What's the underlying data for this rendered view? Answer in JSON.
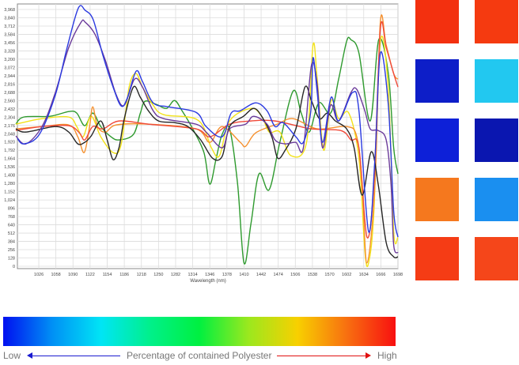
{
  "chart_data": {
    "type": "line",
    "title": "",
    "xlabel": "Wavelength (nm)",
    "ylabel": "",
    "xlim": [
      986,
      1698
    ],
    "ylim": [
      0,
      4000
    ],
    "grid": true,
    "x_ticks": [
      "1026",
      "1058",
      "1090",
      "1122",
      "1154",
      "1186",
      "1218",
      "1250",
      "1282",
      "1314",
      "1346",
      "1378",
      "1410",
      "1442",
      "1474",
      "1506",
      "1538",
      "1570",
      "1602",
      "1634",
      "1666",
      "1698"
    ],
    "x_tick_values": [
      1026,
      1058,
      1090,
      1122,
      1154,
      1186,
      1218,
      1250,
      1282,
      1314,
      1346,
      1378,
      1410,
      1442,
      1474,
      1506,
      1538,
      1570,
      1602,
      1634,
      1666,
      1698
    ],
    "y_ticks": [
      "0",
      "128",
      "256",
      "384",
      "512",
      "640",
      "768",
      "896",
      "1,024",
      "1,152",
      "1,280",
      "1,408",
      "1,536",
      "1,664",
      "1,792",
      "1,920",
      "2,048",
      "2,176",
      "2,304",
      "2,432",
      "2,560",
      "2,688",
      "2,816",
      "2,944",
      "3,072",
      "3,200",
      "3,328",
      "3,456",
      "3,584",
      "3,712",
      "3,840",
      "3,968"
    ],
    "y_tick_values": [
      0,
      128,
      256,
      384,
      512,
      640,
      768,
      896,
      1024,
      1152,
      1280,
      1408,
      1536,
      1664,
      1792,
      1920,
      2048,
      2176,
      2304,
      2432,
      2560,
      2688,
      2816,
      2944,
      3072,
      3200,
      3328,
      3456,
      3584,
      3712,
      3840,
      3968
    ],
    "series": [
      {
        "name": "green",
        "color": "#2e9a2e",
        "points": [
          [
            983,
            2196
          ],
          [
            998,
            2306
          ],
          [
            1047,
            2318
          ],
          [
            1082,
            2391
          ],
          [
            1097,
            2367
          ],
          [
            1112,
            2172
          ],
          [
            1127,
            2367
          ],
          [
            1142,
            2159
          ],
          [
            1161,
            2001
          ],
          [
            1176,
            1952
          ],
          [
            1203,
            2037
          ],
          [
            1216,
            2367
          ],
          [
            1225,
            2550
          ],
          [
            1246,
            2501
          ],
          [
            1265,
            2440
          ],
          [
            1280,
            2562
          ],
          [
            1294,
            2403
          ],
          [
            1314,
            2123
          ],
          [
            1335,
            1757
          ],
          [
            1346,
            1269
          ],
          [
            1358,
            1671
          ],
          [
            1369,
            2037
          ],
          [
            1383,
            2123
          ],
          [
            1398,
            1269
          ],
          [
            1410,
            49
          ],
          [
            1423,
            659
          ],
          [
            1438,
            1427
          ],
          [
            1457,
            1183
          ],
          [
            1477,
            1915
          ],
          [
            1502,
            2708
          ],
          [
            1517,
            2367
          ],
          [
            1532,
            2074
          ],
          [
            1550,
            2525
          ],
          [
            1572,
            2367
          ],
          [
            1587,
            2891
          ],
          [
            1602,
            3477
          ],
          [
            1610,
            3501
          ],
          [
            1625,
            3294
          ],
          [
            1646,
            2245
          ],
          [
            1662,
            3501
          ],
          [
            1680,
            2977
          ],
          [
            1690,
            1830
          ],
          [
            1698,
            1427
          ]
        ]
      },
      {
        "name": "yellow",
        "color": "#f2e21a",
        "points": [
          [
            983,
            2196
          ],
          [
            1032,
            2281
          ],
          [
            1082,
            2306
          ],
          [
            1097,
            2159
          ],
          [
            1109,
            2001
          ],
          [
            1124,
            2318
          ],
          [
            1142,
            2001
          ],
          [
            1165,
            1757
          ],
          [
            1180,
            1879
          ],
          [
            1195,
            2769
          ],
          [
            1208,
            2977
          ],
          [
            1220,
            2769
          ],
          [
            1240,
            2489
          ],
          [
            1260,
            2342
          ],
          [
            1324,
            2257
          ],
          [
            1349,
            1830
          ],
          [
            1364,
            1708
          ],
          [
            1383,
            2245
          ],
          [
            1423,
            2440
          ],
          [
            1443,
            2318
          ],
          [
            1457,
            2074
          ],
          [
            1477,
            2074
          ],
          [
            1498,
            1708
          ],
          [
            1527,
            1915
          ],
          [
            1539,
            3416
          ],
          [
            1547,
            2891
          ],
          [
            1559,
            1793
          ],
          [
            1573,
            2562
          ],
          [
            1587,
            2281
          ],
          [
            1606,
            2367
          ],
          [
            1625,
            1671
          ],
          [
            1636,
            244
          ],
          [
            1643,
            49
          ],
          [
            1653,
            854
          ],
          [
            1665,
            3465
          ],
          [
            1680,
            2733
          ],
          [
            1690,
            537
          ],
          [
            1698,
            451
          ]
        ]
      },
      {
        "name": "orange",
        "color": "#f5902e",
        "points": [
          [
            983,
            2123
          ],
          [
            1032,
            2159
          ],
          [
            1082,
            2184
          ],
          [
            1099,
            2001
          ],
          [
            1111,
            1757
          ],
          [
            1121,
            2159
          ],
          [
            1127,
            2464
          ],
          [
            1136,
            2159
          ],
          [
            1151,
            2074
          ],
          [
            1171,
            2184
          ],
          [
            1231,
            2196
          ],
          [
            1320,
            2123
          ],
          [
            1346,
            1915
          ],
          [
            1369,
            2159
          ],
          [
            1403,
            1915
          ],
          [
            1413,
            1854
          ],
          [
            1432,
            2062
          ],
          [
            1472,
            2196
          ],
          [
            1502,
            2281
          ],
          [
            1547,
            2123
          ],
          [
            1602,
            2159
          ],
          [
            1621,
            2001
          ],
          [
            1631,
            1269
          ],
          [
            1640,
            49
          ],
          [
            1655,
            1269
          ],
          [
            1665,
            3770
          ],
          [
            1676,
            3416
          ],
          [
            1690,
            2977
          ],
          [
            1698,
            2891
          ]
        ]
      },
      {
        "name": "red",
        "color": "#f04a3a",
        "points": [
          [
            983,
            2098
          ],
          [
            1032,
            2159
          ],
          [
            1082,
            2172
          ],
          [
            1102,
            2062
          ],
          [
            1112,
            1952
          ],
          [
            1127,
            2159
          ],
          [
            1146,
            2123
          ],
          [
            1176,
            2245
          ],
          [
            1231,
            2196
          ],
          [
            1320,
            2123
          ],
          [
            1346,
            2001
          ],
          [
            1383,
            2196
          ],
          [
            1423,
            2245
          ],
          [
            1468,
            2245
          ],
          [
            1536,
            2123
          ],
          [
            1591,
            2098
          ],
          [
            1610,
            1952
          ],
          [
            1625,
            1830
          ],
          [
            1640,
            451
          ],
          [
            1653,
            1269
          ],
          [
            1665,
            3660
          ],
          [
            1676,
            3379
          ],
          [
            1690,
            2977
          ],
          [
            1698,
            2769
          ]
        ]
      },
      {
        "name": "black",
        "color": "#262626",
        "points": [
          [
            983,
            2123
          ],
          [
            1002,
            2074
          ],
          [
            1057,
            2159
          ],
          [
            1082,
            2074
          ],
          [
            1099,
            1891
          ],
          [
            1112,
            1915
          ],
          [
            1124,
            2013
          ],
          [
            1142,
            2245
          ],
          [
            1154,
            1952
          ],
          [
            1165,
            1647
          ],
          [
            1176,
            1830
          ],
          [
            1186,
            2281
          ],
          [
            1203,
            2769
          ],
          [
            1216,
            2611
          ],
          [
            1231,
            2403
          ],
          [
            1250,
            2245
          ],
          [
            1280,
            2220
          ],
          [
            1305,
            2159
          ],
          [
            1329,
            1952
          ],
          [
            1351,
            1671
          ],
          [
            1369,
            1696
          ],
          [
            1383,
            2159
          ],
          [
            1409,
            2318
          ],
          [
            1428,
            2440
          ],
          [
            1443,
            2318
          ],
          [
            1462,
            2001
          ],
          [
            1473,
            1671
          ],
          [
            1487,
            1793
          ],
          [
            1507,
            2123
          ],
          [
            1524,
            2769
          ],
          [
            1536,
            2562
          ],
          [
            1551,
            2281
          ],
          [
            1566,
            2367
          ],
          [
            1581,
            2245
          ],
          [
            1602,
            2123
          ],
          [
            1616,
            1830
          ],
          [
            1631,
            1098
          ],
          [
            1648,
            1769
          ],
          [
            1661,
            1269
          ],
          [
            1676,
            366
          ],
          [
            1690,
            146
          ],
          [
            1698,
            146
          ]
        ]
      },
      {
        "name": "purple",
        "color": "#6a3a9a",
        "points": [
          [
            983,
            2013
          ],
          [
            1002,
            1891
          ],
          [
            1032,
            2159
          ],
          [
            1057,
            2684
          ],
          [
            1082,
            3379
          ],
          [
            1105,
            3770
          ],
          [
            1113,
            3770
          ],
          [
            1131,
            3587
          ],
          [
            1151,
            3172
          ],
          [
            1171,
            2647
          ],
          [
            1186,
            2489
          ],
          [
            1205,
            2891
          ],
          [
            1220,
            2769
          ],
          [
            1240,
            2403
          ],
          [
            1260,
            2281
          ],
          [
            1320,
            2196
          ],
          [
            1339,
            2074
          ],
          [
            1369,
            1830
          ],
          [
            1383,
            2123
          ],
          [
            1413,
            2196
          ],
          [
            1428,
            2318
          ],
          [
            1453,
            2196
          ],
          [
            1468,
            1952
          ],
          [
            1487,
            1891
          ],
          [
            1507,
            1915
          ],
          [
            1521,
            1830
          ],
          [
            1536,
            3099
          ],
          [
            1547,
            2806
          ],
          [
            1557,
            1830
          ],
          [
            1572,
            2489
          ],
          [
            1587,
            2245
          ],
          [
            1610,
            2684
          ],
          [
            1621,
            2733
          ],
          [
            1636,
            2403
          ],
          [
            1646,
            2123
          ],
          [
            1661,
            2098
          ],
          [
            1676,
            1952
          ],
          [
            1685,
            1269
          ],
          [
            1690,
            329
          ],
          [
            1698,
            207
          ]
        ]
      },
      {
        "name": "blue",
        "color": "#2b3ae0",
        "points": [
          [
            986,
            1976
          ],
          [
            998,
            1891
          ],
          [
            1027,
            2037
          ],
          [
            1057,
            2647
          ],
          [
            1079,
            3379
          ],
          [
            1100,
            3990
          ],
          [
            1113,
            3953
          ],
          [
            1128,
            3806
          ],
          [
            1146,
            3257
          ],
          [
            1165,
            2769
          ],
          [
            1180,
            2477
          ],
          [
            1191,
            2586
          ],
          [
            1208,
            3013
          ],
          [
            1220,
            2855
          ],
          [
            1240,
            2525
          ],
          [
            1268,
            2464
          ],
          [
            1320,
            2379
          ],
          [
            1339,
            2159
          ],
          [
            1369,
            2001
          ],
          [
            1386,
            2367
          ],
          [
            1403,
            2403
          ],
          [
            1432,
            2525
          ],
          [
            1453,
            2403
          ],
          [
            1468,
            2159
          ],
          [
            1483,
            2220
          ],
          [
            1507,
            2001
          ],
          [
            1521,
            1915
          ],
          [
            1535,
            2403
          ],
          [
            1539,
            3221
          ],
          [
            1547,
            2684
          ],
          [
            1557,
            1915
          ],
          [
            1573,
            2611
          ],
          [
            1587,
            2245
          ],
          [
            1613,
            2684
          ],
          [
            1625,
            2403
          ],
          [
            1643,
            537
          ],
          [
            1655,
            1671
          ],
          [
            1665,
            3294
          ],
          [
            1680,
            2489
          ],
          [
            1690,
            854
          ],
          [
            1698,
            451
          ]
        ]
      }
    ]
  },
  "samples": {
    "colors": [
      "#f3300f",
      "#f53a10",
      "#0d1ec8",
      "#22c8f0",
      "#0d20d8",
      "#0a16b0",
      "#f5781e",
      "#1a8ff0",
      "#f53c15",
      "#f5461a"
    ]
  },
  "colorbar": {
    "stops": [
      "#0010f0",
      "#0090f5",
      "#00e5f5",
      "#00f08a",
      "#00f040",
      "#9be81e",
      "#f8d000",
      "#f87010",
      "#f81010"
    ],
    "low_label": "Low",
    "high_label": "High",
    "caption": "Percentage of contained Polyester",
    "low_arrow_color": "#1a1ad0",
    "high_arrow_color": "#e01010"
  }
}
